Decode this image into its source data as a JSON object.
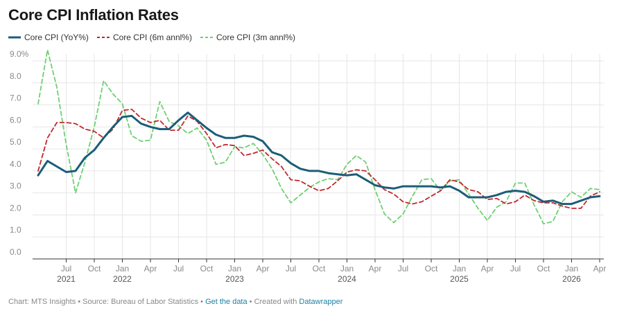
{
  "title": "Core CPI Inflation Rates",
  "legend": [
    {
      "label": "Core CPI (YoY%)",
      "color": "#1b5d78",
      "dash": "solid"
    },
    {
      "label": "Core CPI (6m annl%)",
      "color": "#c1272d",
      "dash": "dashed"
    },
    {
      "label": "Core CPI (3m annl%)",
      "color": "#6fcf73",
      "dash": "dashed"
    }
  ],
  "footer": {
    "prefix": "Chart: MTS Insights • Source: Bureau of Labor Statistics •",
    "get_data": "Get the data",
    "created_with": "• Created with",
    "datawrapper": "Datawrapper"
  },
  "chart_data": {
    "type": "line",
    "x_start": "2021-04",
    "frequency": "monthly",
    "ylim": [
      0,
      9.0
    ],
    "y_ticks": [
      "0.0",
      "1.0",
      "2.0",
      "3.0",
      "4.0",
      "5.0",
      "6.0",
      "7.0",
      "8.0",
      "9.0%"
    ],
    "y_tick_values": [
      0,
      1,
      2,
      3,
      4,
      5,
      6,
      7,
      8,
      9
    ],
    "x_ticks": [
      {
        "label": "Jul",
        "year": "2021",
        "date": "2021-07"
      },
      {
        "label": "Oct",
        "year": "",
        "date": "2021-10"
      },
      {
        "label": "Jan",
        "year": "2022",
        "date": "2022-01"
      },
      {
        "label": "Apr",
        "year": "",
        "date": "2022-04"
      },
      {
        "label": "Jul",
        "year": "",
        "date": "2022-07"
      },
      {
        "label": "Oct",
        "year": "",
        "date": "2022-10"
      },
      {
        "label": "Jan",
        "year": "2023",
        "date": "2023-01"
      },
      {
        "label": "Apr",
        "year": "",
        "date": "2023-04"
      },
      {
        "label": "Jul",
        "year": "",
        "date": "2023-07"
      },
      {
        "label": "Oct",
        "year": "",
        "date": "2023-10"
      },
      {
        "label": "Jan",
        "year": "2024",
        "date": "2024-01"
      },
      {
        "label": "Apr",
        "year": "",
        "date": "2024-04"
      },
      {
        "label": "Jul",
        "year": "",
        "date": "2024-07"
      },
      {
        "label": "Oct",
        "year": "",
        "date": "2024-10"
      },
      {
        "label": "Jan",
        "year": "2025",
        "date": "2025-01"
      },
      {
        "label": "Apr",
        "year": "",
        "date": "2025-04"
      },
      {
        "label": "Jul",
        "year": "",
        "date": "2025-07"
      },
      {
        "label": "Oct",
        "year": "",
        "date": "2025-10"
      },
      {
        "label": "Jan",
        "year": "2026",
        "date": "2026-01"
      },
      {
        "label": "Apr",
        "year": "",
        "date": "2026-04"
      }
    ],
    "grid": true,
    "legend_position": "top-left",
    "series": [
      {
        "name": "Core CPI (YoY%)",
        "color": "#1b5d78",
        "values": [
          3.8,
          4.45,
          4.2,
          3.95,
          4.0,
          4.6,
          4.95,
          5.5,
          6.0,
          6.45,
          6.5,
          6.15,
          6.0,
          5.9,
          5.9,
          6.3,
          6.65,
          6.3,
          5.95,
          5.65,
          5.5,
          5.5,
          5.6,
          5.55,
          5.35,
          4.85,
          4.7,
          4.35,
          4.1,
          4.0,
          4.0,
          3.9,
          3.85,
          3.8,
          3.85,
          3.6,
          3.35,
          3.25,
          3.2,
          3.3,
          3.3,
          3.3,
          3.3,
          3.25,
          3.3,
          3.1,
          2.8,
          2.8,
          2.8,
          2.9,
          3.05,
          3.1,
          3.05,
          2.85,
          2.6,
          2.65,
          2.5,
          2.5,
          2.65,
          2.8,
          2.85
        ]
      },
      {
        "name": "Core CPI (6m annl%)",
        "color": "#c1272d",
        "values": [
          4.0,
          5.5,
          6.2,
          6.2,
          6.15,
          5.9,
          5.8,
          5.5,
          5.9,
          6.75,
          6.8,
          6.4,
          6.2,
          6.3,
          5.85,
          5.85,
          6.5,
          6.25,
          5.7,
          5.05,
          5.2,
          5.15,
          4.7,
          4.8,
          4.95,
          4.55,
          4.2,
          3.6,
          3.55,
          3.3,
          3.1,
          3.2,
          3.55,
          3.95,
          4.05,
          4.0,
          3.6,
          3.15,
          2.95,
          2.6,
          2.5,
          2.6,
          2.85,
          3.1,
          3.6,
          3.5,
          3.15,
          3.05,
          2.7,
          2.75,
          2.5,
          2.6,
          2.9,
          2.65,
          2.55,
          2.55,
          2.4,
          2.3,
          2.3,
          2.85,
          3.05
        ]
      },
      {
        "name": "Core CPI (3m annl%)",
        "color": "#6fcf73",
        "values": [
          7.05,
          9.5,
          7.8,
          5.2,
          3.0,
          4.4,
          6.0,
          8.1,
          7.5,
          7.05,
          5.6,
          5.35,
          5.4,
          7.15,
          6.25,
          6.05,
          5.7,
          5.95,
          5.4,
          4.3,
          4.4,
          5.1,
          5.05,
          5.25,
          4.75,
          4.1,
          3.2,
          2.55,
          2.9,
          3.25,
          3.5,
          3.65,
          3.6,
          4.3,
          4.7,
          4.4,
          3.15,
          2.05,
          1.65,
          2.05,
          2.85,
          3.6,
          3.65,
          3.1,
          3.55,
          3.6,
          2.95,
          2.3,
          1.75,
          2.35,
          2.6,
          3.45,
          3.45,
          2.45,
          1.6,
          1.7,
          2.6,
          3.05,
          2.8,
          3.2,
          3.15
        ]
      }
    ]
  }
}
